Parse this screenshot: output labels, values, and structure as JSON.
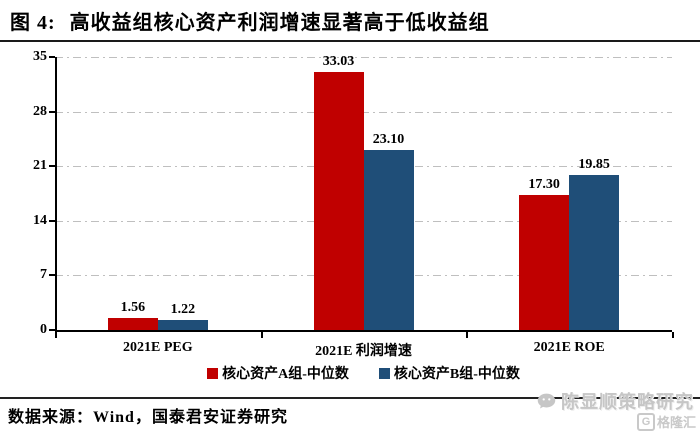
{
  "header": {
    "title_prefix": "图 4:",
    "title": "高收益组核心资产利润增速显著高于低收益组"
  },
  "chart_data": {
    "type": "bar",
    "categories": [
      "2021E PEG",
      "2021E 利润增速",
      "2021E ROE"
    ],
    "series": [
      {
        "name": "核心资产A组-中位数",
        "color": "#c00000",
        "values": [
          1.56,
          33.03,
          17.3
        ]
      },
      {
        "name": "核心资产B组-中位数",
        "color": "#1f4e78",
        "values": [
          1.22,
          23.1,
          19.85
        ]
      }
    ],
    "title": "",
    "xlabel": "",
    "ylabel": "",
    "ylim": [
      0,
      35
    ],
    "yticks": [
      0,
      7,
      14,
      21,
      28,
      35
    ],
    "grid": "horizontal dash-dot",
    "grid_color": "#bfbfbf",
    "legend_position": "bottom",
    "value_labels": true,
    "value_label_format": "2dp"
  },
  "footer": {
    "source": "数据来源：Wind，国泰君安证券研究"
  },
  "watermark": {
    "name": "陈显顺策略研究",
    "logo": "格隆汇"
  }
}
